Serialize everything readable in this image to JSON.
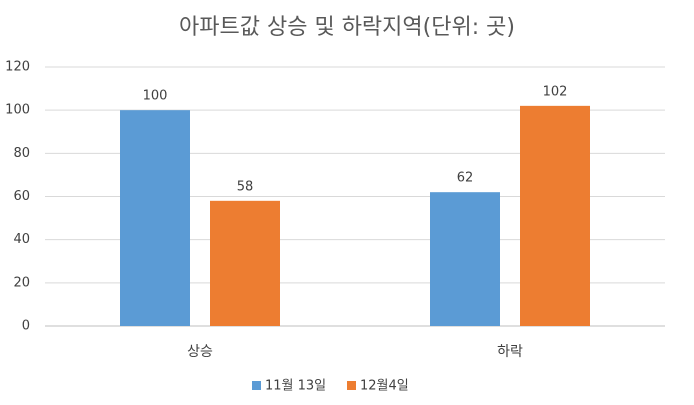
{
  "chart_data": {
    "type": "bar",
    "title": "아파트값 상승 및 하락지역(단위: 곳)",
    "categories": [
      "상승",
      "하락"
    ],
    "series": [
      {
        "name": "11월 13일",
        "color": "#5b9bd5",
        "values": [
          100,
          62
        ]
      },
      {
        "name": "12월4일",
        "color": "#ed7d31",
        "values": [
          58,
          102
        ]
      }
    ],
    "ylim": [
      0,
      120
    ],
    "yticks": [
      0,
      20,
      40,
      60,
      80,
      100,
      120
    ],
    "grid": true,
    "data_labels": true,
    "legend": "bottom"
  }
}
